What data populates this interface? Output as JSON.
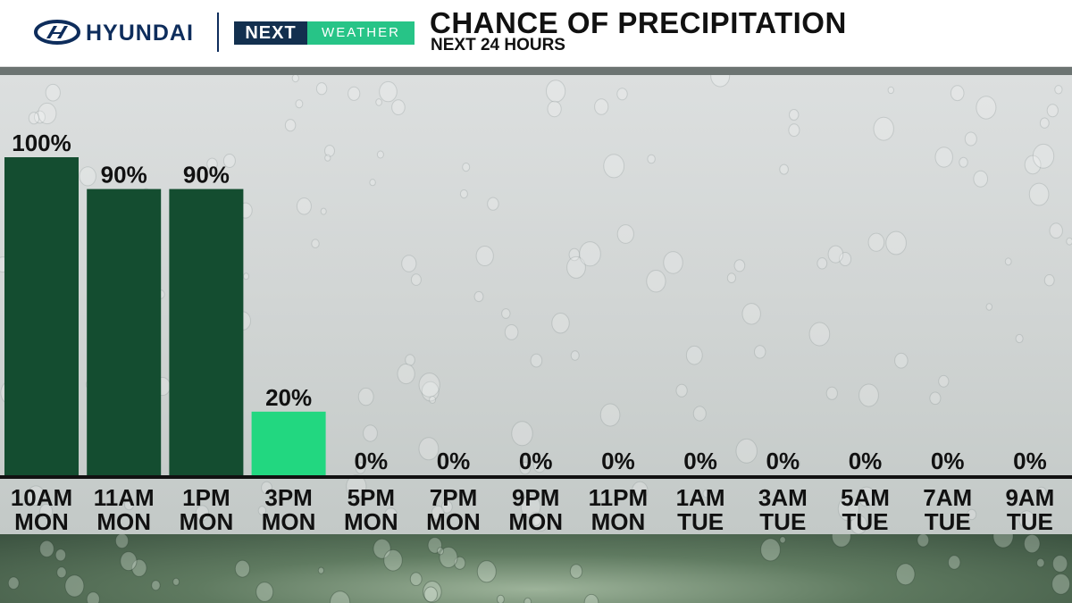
{
  "header": {
    "sponsor": "HYUNDAI",
    "brand_next": "NEXT",
    "brand_weather": "WEATHER",
    "title": "CHANCE OF PRECIPITATION",
    "subtitle": "NEXT 24 HOURS"
  },
  "colors": {
    "bar_high": "#144d30",
    "bar_low": "#22d780",
    "baseline": "#111111"
  },
  "icons": [
    "hyundai-logo-icon"
  ],
  "chart_data": {
    "type": "bar",
    "title": "CHANCE OF PRECIPITATION",
    "subtitle": "NEXT 24 HOURS",
    "categories": [
      [
        "10AM",
        "MON"
      ],
      [
        "11AM",
        "MON"
      ],
      [
        "1PM",
        "MON"
      ],
      [
        "3PM",
        "MON"
      ],
      [
        "5PM",
        "MON"
      ],
      [
        "7PM",
        "MON"
      ],
      [
        "9PM",
        "MON"
      ],
      [
        "11PM",
        "MON"
      ],
      [
        "1AM",
        "TUE"
      ],
      [
        "3AM",
        "TUE"
      ],
      [
        "5AM",
        "TUE"
      ],
      [
        "7AM",
        "TUE"
      ],
      [
        "9AM",
        "TUE"
      ]
    ],
    "values": [
      100,
      90,
      90,
      20,
      0,
      0,
      0,
      0,
      0,
      0,
      0,
      0,
      0
    ],
    "value_labels": [
      "100%",
      "90%",
      "90%",
      "20%",
      "0%",
      "0%",
      "0%",
      "0%",
      "0%",
      "0%",
      "0%",
      "0%",
      "0%"
    ],
    "ylim": [
      0,
      100
    ],
    "xlabel": "",
    "ylabel": "",
    "grid": false
  }
}
